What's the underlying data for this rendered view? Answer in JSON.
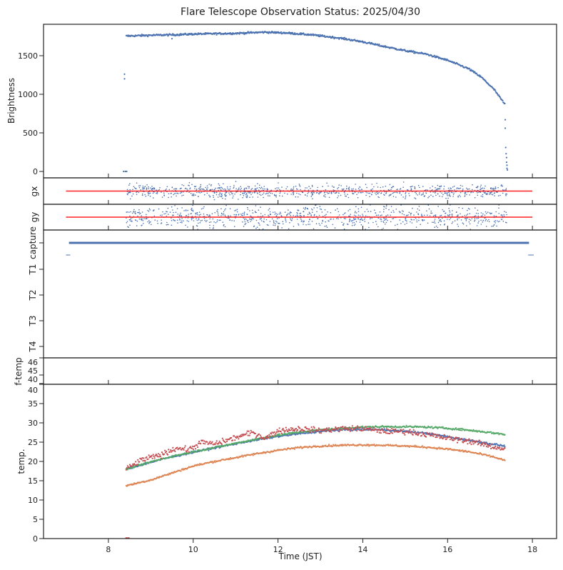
{
  "chart_data": {
    "type": "scatter",
    "title": "Flare Telescope Observation Status: 2025/04/30",
    "xlabel": "Time (JST)",
    "xlim": [
      6.47,
      18.57
    ],
    "xticks": [
      8,
      10,
      12,
      14,
      16,
      18
    ],
    "xtick_labels": [
      "8",
      "10",
      "12",
      "14",
      "16",
      "18"
    ],
    "panels": [
      {
        "id": "brightness",
        "ylabel": "Brightness",
        "ylim": [
          -83,
          1907
        ],
        "yticks": [
          0,
          500,
          1000,
          1500
        ],
        "ytick_labels": [
          "0",
          "500",
          "1000",
          "1500"
        ],
        "series": [
          {
            "name": "Brightness",
            "color": "#4c72b0",
            "x": [
              8.42,
              9.0,
              9.5,
              10.0,
              10.5,
              11.0,
              11.7,
              12.2,
              12.8,
              13.5,
              14.0,
              14.5,
              15.0,
              15.5,
              16.0,
              16.5,
              16.8,
              17.1,
              17.35
            ],
            "y": [
              1755,
              1765,
              1770,
              1780,
              1785,
              1790,
              1805,
              1795,
              1770,
              1725,
              1680,
              1620,
              1565,
              1520,
              1440,
              1330,
              1220,
              1060,
              870
            ]
          },
          {
            "name": "Brightness-outliers",
            "color": "#4c72b0",
            "x": [
              8.38,
              8.38,
              8.36,
              8.4,
              8.43,
              9.5,
              17.36,
              17.36,
              17.37,
              17.38,
              17.39,
              17.39,
              17.4,
              17.4,
              17.41
            ],
            "y": [
              1260,
              1200,
              0,
              0,
              0,
              1720,
              670,
              560,
              310,
              230,
              180,
              120,
              80,
              40,
              20
            ]
          }
        ]
      },
      {
        "id": "gx",
        "ylabel": "gx",
        "ylim": [
          -1,
          1
        ],
        "reference": {
          "value": 0,
          "x": [
            7.0,
            18.0
          ],
          "color": "#ff2020"
        },
        "series": [
          {
            "name": "gx",
            "color": "#4c72b0",
            "x_range": [
              8.42,
              17.4
            ],
            "center": 0,
            "spread": 0.45
          }
        ]
      },
      {
        "id": "gy",
        "ylabel": "gy",
        "ylim": [
          -1,
          1
        ],
        "reference": {
          "value": 0,
          "x": [
            7.0,
            18.0
          ],
          "color": "#ff2020"
        },
        "series": [
          {
            "name": "gy",
            "color": "#4c72b0",
            "x_range": [
              8.42,
              17.4
            ],
            "center": 0,
            "spread": 0.75
          }
        ]
      },
      {
        "id": "status",
        "type": "categorical",
        "categories": [
          "capture",
          "T1",
          "T2",
          "T3",
          "T4"
        ],
        "series": [
          {
            "name": "capture",
            "color": "#4c72b0",
            "category": "capture",
            "x": [
              7.07,
              17.92
            ]
          },
          {
            "name": "marker-start",
            "color": "#4c72b0",
            "category_between": [
              "capture",
              "T1"
            ],
            "x": [
              7.0,
              7.1
            ]
          },
          {
            "name": "marker-end",
            "color": "#4c72b0",
            "category_between": [
              "capture",
              "T1"
            ],
            "x": [
              17.9,
              18.03
            ]
          }
        ]
      },
      {
        "id": "ftemp",
        "ylabel": "f-temp",
        "yticks": [
          46,
          45,
          40
        ],
        "ytick_labels": [
          "46",
          "45",
          "40"
        ]
      },
      {
        "id": "temp",
        "ylabel": "temp.",
        "ylim": [
          0,
          40
        ],
        "yticks": [
          0,
          5,
          10,
          15,
          20,
          25,
          30,
          35,
          40
        ],
        "ytick_labels": [
          "0",
          "5",
          "10",
          "15",
          "20",
          "25",
          "30",
          "35",
          "40"
        ],
        "series": [
          {
            "name": "T1",
            "color": "#4c72b0",
            "x": [
              8.42,
              9.0,
              9.5,
              10.0,
              10.5,
              11.0,
              11.5,
              12.0,
              12.5,
              13.0,
              13.5,
              14.0,
              14.5,
              15.0,
              15.5,
              16.0,
              16.5,
              17.0,
              17.35
            ],
            "y": [
              18.0,
              19.8,
              21.2,
              22.4,
              23.5,
              24.6,
              25.6,
              26.5,
              27.2,
              27.8,
              28.2,
              28.3,
              28.2,
              27.8,
              27.3,
              26.4,
              25.5,
              24.6,
              24.0
            ]
          },
          {
            "name": "T2",
            "color": "#dd8452",
            "x": [
              8.42,
              9.0,
              9.5,
              10.0,
              10.5,
              11.0,
              11.5,
              12.0,
              12.5,
              13.0,
              13.5,
              14.0,
              14.5,
              15.0,
              15.5,
              16.0,
              16.5,
              17.0,
              17.35
            ],
            "y": [
              13.7,
              15.2,
              17.0,
              18.8,
              20.0,
              21.0,
              22.0,
              22.9,
              23.6,
              24.0,
              24.2,
              24.3,
              24.2,
              24.0,
              23.7,
              23.2,
              22.5,
              21.4,
              20.3
            ]
          },
          {
            "name": "T3",
            "color": "#55a868",
            "x": [
              8.42,
              9.0,
              9.5,
              10.0,
              10.5,
              11.0,
              11.5,
              12.0,
              12.5,
              13.0,
              13.5,
              14.0,
              14.5,
              15.0,
              15.5,
              16.0,
              16.5,
              17.0,
              17.35
            ],
            "y": [
              18.0,
              19.9,
              21.3,
              22.5,
              23.6,
              24.7,
              25.8,
              26.8,
              27.6,
              28.2,
              28.6,
              28.9,
              29.0,
              29.0,
              28.9,
              28.6,
              28.1,
              27.5,
              27.0
            ]
          },
          {
            "name": "T4",
            "color": "#c44e52",
            "x": [
              8.42,
              8.8,
              9.2,
              9.6,
              9.9,
              10.2,
              10.5,
              10.8,
              11.1,
              11.4,
              11.7,
              12.0,
              12.5,
              13.0,
              13.5,
              14.0,
              14.5,
              15.0,
              15.5,
              16.0,
              16.5,
              17.0,
              17.35
            ],
            "y": [
              18.0,
              20.5,
              21.5,
              23.5,
              23.0,
              25.0,
              24.5,
              25.5,
              26.5,
              27.5,
              26.0,
              28.0,
              28.5,
              28.0,
              28.5,
              28.5,
              27.8,
              27.8,
              27.0,
              26.0,
              25.3,
              24.0,
              23.2
            ]
          }
        ]
      }
    ]
  }
}
